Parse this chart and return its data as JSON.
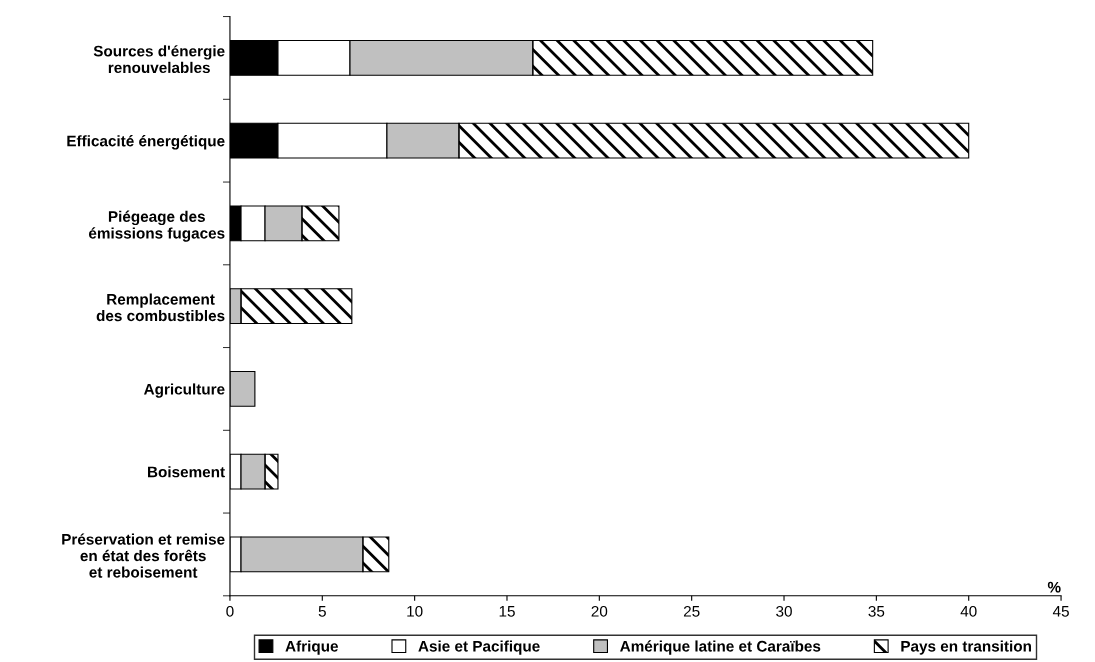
{
  "chart_data": {
    "type": "bar",
    "orientation": "horizontal",
    "stacked": true,
    "categories": [
      "Sources d'énergie\nrenouvelables",
      "Efficacité énergétique",
      "Piégeage des\némissions fugaces",
      "Remplacement\ndes combustibles",
      "Agriculture",
      "Boisement",
      "Préservation et remise\nen état des forêts\net reboisement"
    ],
    "series": [
      {
        "name": "Afrique",
        "color": "#000000",
        "values": [
          2.6,
          2.6,
          0.6,
          null,
          null,
          null,
          null
        ]
      },
      {
        "name": "Asie et Pacifique",
        "color": "#ffffff",
        "values": [
          3.9,
          5.9,
          1.3,
          null,
          null,
          0.6,
          0.6
        ]
      },
      {
        "name": "Amérique latine et Caraïbes",
        "color": "#c0c0c0",
        "values": [
          9.9,
          3.9,
          2.0,
          0.6,
          1.35,
          1.3,
          6.6
        ]
      },
      {
        "name": "Pays en transition",
        "color": "#000000",
        "values": [
          18.4,
          27.6,
          2.0,
          6.0,
          null,
          0.7,
          1.4
        ]
      }
    ],
    "xlabel": "%",
    "xlim": [
      0,
      45
    ],
    "xticks": [
      0,
      5,
      10,
      15,
      20,
      25,
      30,
      35,
      40,
      45
    ],
    "grid": false,
    "legend": "bottom"
  }
}
